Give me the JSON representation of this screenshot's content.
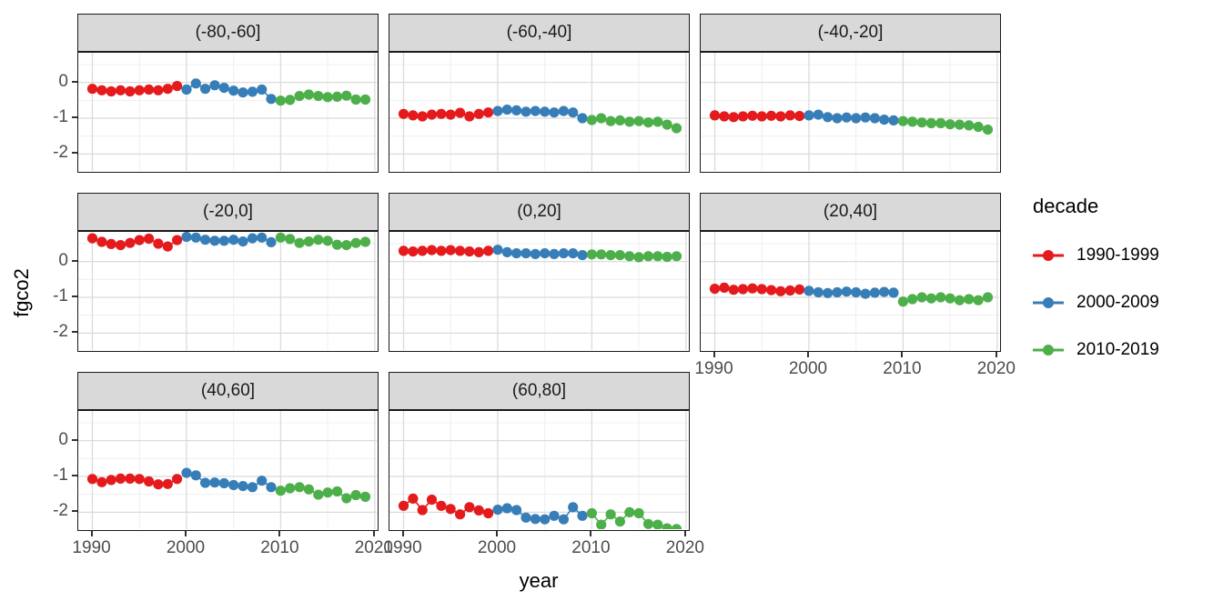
{
  "chart_data": {
    "type": "scatter",
    "xlabel": "year",
    "ylabel": "fgco2",
    "legend_title": "decade",
    "legend_position": "right",
    "grid": true,
    "x": [
      1990,
      1991,
      1992,
      1993,
      1994,
      1995,
      1996,
      1997,
      1998,
      1999,
      2000,
      2001,
      2002,
      2003,
      2004,
      2005,
      2006,
      2007,
      2008,
      2009,
      2010,
      2011,
      2012,
      2013,
      2014,
      2015,
      2016,
      2017,
      2018,
      2019
    ],
    "xlim": [
      1988.5,
      2020.5
    ],
    "ylim": [
      -2.55,
      0.83
    ],
    "x_ticks": [
      1990,
      2000,
      2010,
      2020
    ],
    "x_minor_ticks": [
      1995,
      2005,
      2015
    ],
    "y_ticks": [
      0,
      -1,
      -2
    ],
    "y_minor_ticks": [
      0.5,
      -0.5,
      -1.5,
      -2.5
    ],
    "x_tick_labels": [
      "1990",
      "2000",
      "2010",
      "2020"
    ],
    "y_tick_labels": [
      "0",
      "-1",
      "-2"
    ],
    "decades": [
      {
        "name": "1990-1999",
        "color": "#E41A1C",
        "start_year": 1990,
        "end_year": 1999
      },
      {
        "name": "2000-2009",
        "color": "#377EB8",
        "start_year": 2000,
        "end_year": 2009
      },
      {
        "name": "2010-2019",
        "color": "#4DAF4A",
        "start_year": 2010,
        "end_year": 2019
      }
    ],
    "facets": [
      {
        "label": "(-80,-60]",
        "values": [
          -0.18,
          -0.22,
          -0.25,
          -0.22,
          -0.25,
          -0.22,
          -0.2,
          -0.22,
          -0.18,
          -0.1,
          -0.2,
          -0.03,
          -0.18,
          -0.08,
          -0.15,
          -0.23,
          -0.28,
          -0.26,
          -0.2,
          -0.46,
          -0.51,
          -0.49,
          -0.38,
          -0.34,
          -0.38,
          -0.41,
          -0.4,
          -0.37,
          -0.48,
          -0.48
        ]
      },
      {
        "label": "(-60,-40]",
        "values": [
          -0.88,
          -0.92,
          -0.95,
          -0.9,
          -0.88,
          -0.9,
          -0.85,
          -0.95,
          -0.88,
          -0.84,
          -0.8,
          -0.76,
          -0.78,
          -0.82,
          -0.8,
          -0.82,
          -0.84,
          -0.8,
          -0.84,
          -1.0,
          -1.05,
          -1.0,
          -1.08,
          -1.06,
          -1.1,
          -1.08,
          -1.12,
          -1.1,
          -1.18,
          -1.28
        ]
      },
      {
        "label": "(-40,-20]",
        "values": [
          -0.92,
          -0.95,
          -0.97,
          -0.95,
          -0.93,
          -0.95,
          -0.93,
          -0.95,
          -0.92,
          -0.94,
          -0.92,
          -0.9,
          -0.97,
          -1.0,
          -0.98,
          -1.0,
          -0.98,
          -1.0,
          -1.04,
          -1.06,
          -1.08,
          -1.1,
          -1.12,
          -1.14,
          -1.14,
          -1.17,
          -1.18,
          -1.2,
          -1.24,
          -1.32
        ]
      },
      {
        "label": "(-20,0]",
        "values": [
          0.65,
          0.55,
          0.49,
          0.46,
          0.52,
          0.6,
          0.64,
          0.5,
          0.42,
          0.6,
          0.69,
          0.67,
          0.61,
          0.58,
          0.58,
          0.61,
          0.56,
          0.65,
          0.67,
          0.54,
          0.67,
          0.63,
          0.52,
          0.56,
          0.61,
          0.58,
          0.47,
          0.46,
          0.52,
          0.55
        ]
      },
      {
        "label": "(0,20]",
        "values": [
          0.3,
          0.28,
          0.3,
          0.32,
          0.3,
          0.32,
          0.3,
          0.28,
          0.26,
          0.3,
          0.33,
          0.26,
          0.23,
          0.23,
          0.21,
          0.23,
          0.21,
          0.23,
          0.23,
          0.18,
          0.2,
          0.2,
          0.18,
          0.18,
          0.15,
          0.12,
          0.15,
          0.15,
          0.13,
          0.15
        ]
      },
      {
        "label": "(20,40]",
        "values": [
          -0.76,
          -0.73,
          -0.79,
          -0.77,
          -0.75,
          -0.77,
          -0.8,
          -0.83,
          -0.81,
          -0.78,
          -0.82,
          -0.86,
          -0.88,
          -0.86,
          -0.84,
          -0.86,
          -0.9,
          -0.87,
          -0.85,
          -0.87,
          -1.12,
          -1.05,
          -1.0,
          -1.03,
          -1.0,
          -1.03,
          -1.08,
          -1.05,
          -1.08,
          -1.0
        ]
      },
      {
        "label": "(40,60]",
        "values": [
          -1.07,
          -1.16,
          -1.1,
          -1.06,
          -1.06,
          -1.07,
          -1.14,
          -1.22,
          -1.21,
          -1.07,
          -0.9,
          -0.97,
          -1.18,
          -1.17,
          -1.19,
          -1.24,
          -1.27,
          -1.3,
          -1.12,
          -1.3,
          -1.4,
          -1.33,
          -1.3,
          -1.36,
          -1.51,
          -1.45,
          -1.42,
          -1.61,
          -1.52,
          -1.57
        ]
      },
      {
        "label": "(60,80]",
        "values": [
          -1.82,
          -1.62,
          -1.94,
          -1.65,
          -1.82,
          -1.91,
          -2.06,
          -1.86,
          -1.95,
          -2.03,
          -1.93,
          -1.89,
          -1.94,
          -2.15,
          -2.19,
          -2.2,
          -2.1,
          -2.2,
          -1.86,
          -2.1,
          -2.03,
          -2.35,
          -2.06,
          -2.26,
          -2.0,
          -2.03,
          -2.33,
          -2.35,
          -2.45,
          -2.47
        ]
      }
    ]
  },
  "theme": {
    "strip_background": "#D9D9D9",
    "panel_border": "#1A1A1A",
    "grid_major_color": "#DBDBDB",
    "grid_minor_color": "#EFEFEF",
    "tick_label_color": "#4D4D4D",
    "tick_mark_color": "#333333",
    "point_colors": {
      "1990-1999": "#E41A1C",
      "2000-2009": "#377EB8",
      "2010-2019": "#4DAF4A"
    }
  }
}
